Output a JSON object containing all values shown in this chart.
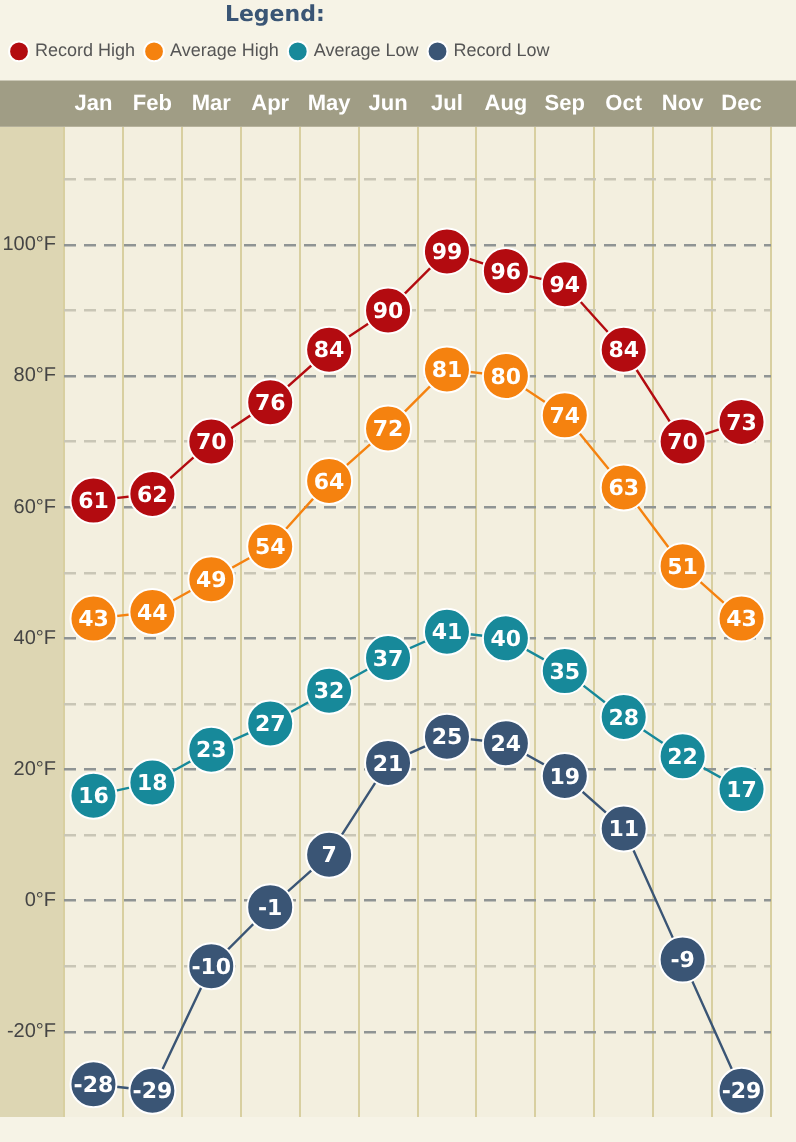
{
  "chart_data": {
    "type": "line",
    "categories": [
      "Jan",
      "Feb",
      "Mar",
      "Apr",
      "May",
      "Jun",
      "Jul",
      "Aug",
      "Sep",
      "Oct",
      "Nov",
      "Dec"
    ],
    "series": [
      {
        "name": "Record High",
        "color": "#b30b10",
        "values": [
          61,
          62,
          70,
          76,
          84,
          90,
          99,
          96,
          94,
          84,
          70,
          73
        ]
      },
      {
        "name": "Average High",
        "color": "#f5820f",
        "values": [
          43,
          44,
          49,
          54,
          64,
          72,
          81,
          80,
          74,
          63,
          51,
          43
        ]
      },
      {
        "name": "Average Low",
        "color": "#17899a",
        "values": [
          16,
          18,
          23,
          27,
          32,
          37,
          41,
          40,
          35,
          28,
          22,
          17
        ]
      },
      {
        "name": "Record Low",
        "color": "#3a5575",
        "values": [
          -28,
          -29,
          -10,
          -1,
          7,
          21,
          25,
          24,
          19,
          11,
          -9,
          -29
        ]
      }
    ],
    "ylim": [
      -33,
      118
    ],
    "yticks": [
      {
        "value": -20,
        "label": "-20°F"
      },
      {
        "value": -10,
        "label": null
      },
      {
        "value": 0,
        "label": "0°F"
      },
      {
        "value": 10,
        "label": null
      },
      {
        "value": 20,
        "label": "20°F"
      },
      {
        "value": 30,
        "label": null
      },
      {
        "value": 40,
        "label": "40°F"
      },
      {
        "value": 50,
        "label": null
      },
      {
        "value": 60,
        "label": "60°F"
      },
      {
        "value": 70,
        "label": null
      },
      {
        "value": 80,
        "label": "80°F"
      },
      {
        "value": 90,
        "label": null
      },
      {
        "value": 100,
        "label": "100°F"
      },
      {
        "value": 110,
        "label": null
      }
    ],
    "legend_title": "Legend:",
    "legend": "top left",
    "grid": true,
    "marker": "circle",
    "line_style": "solid",
    "data_labels": true
  }
}
